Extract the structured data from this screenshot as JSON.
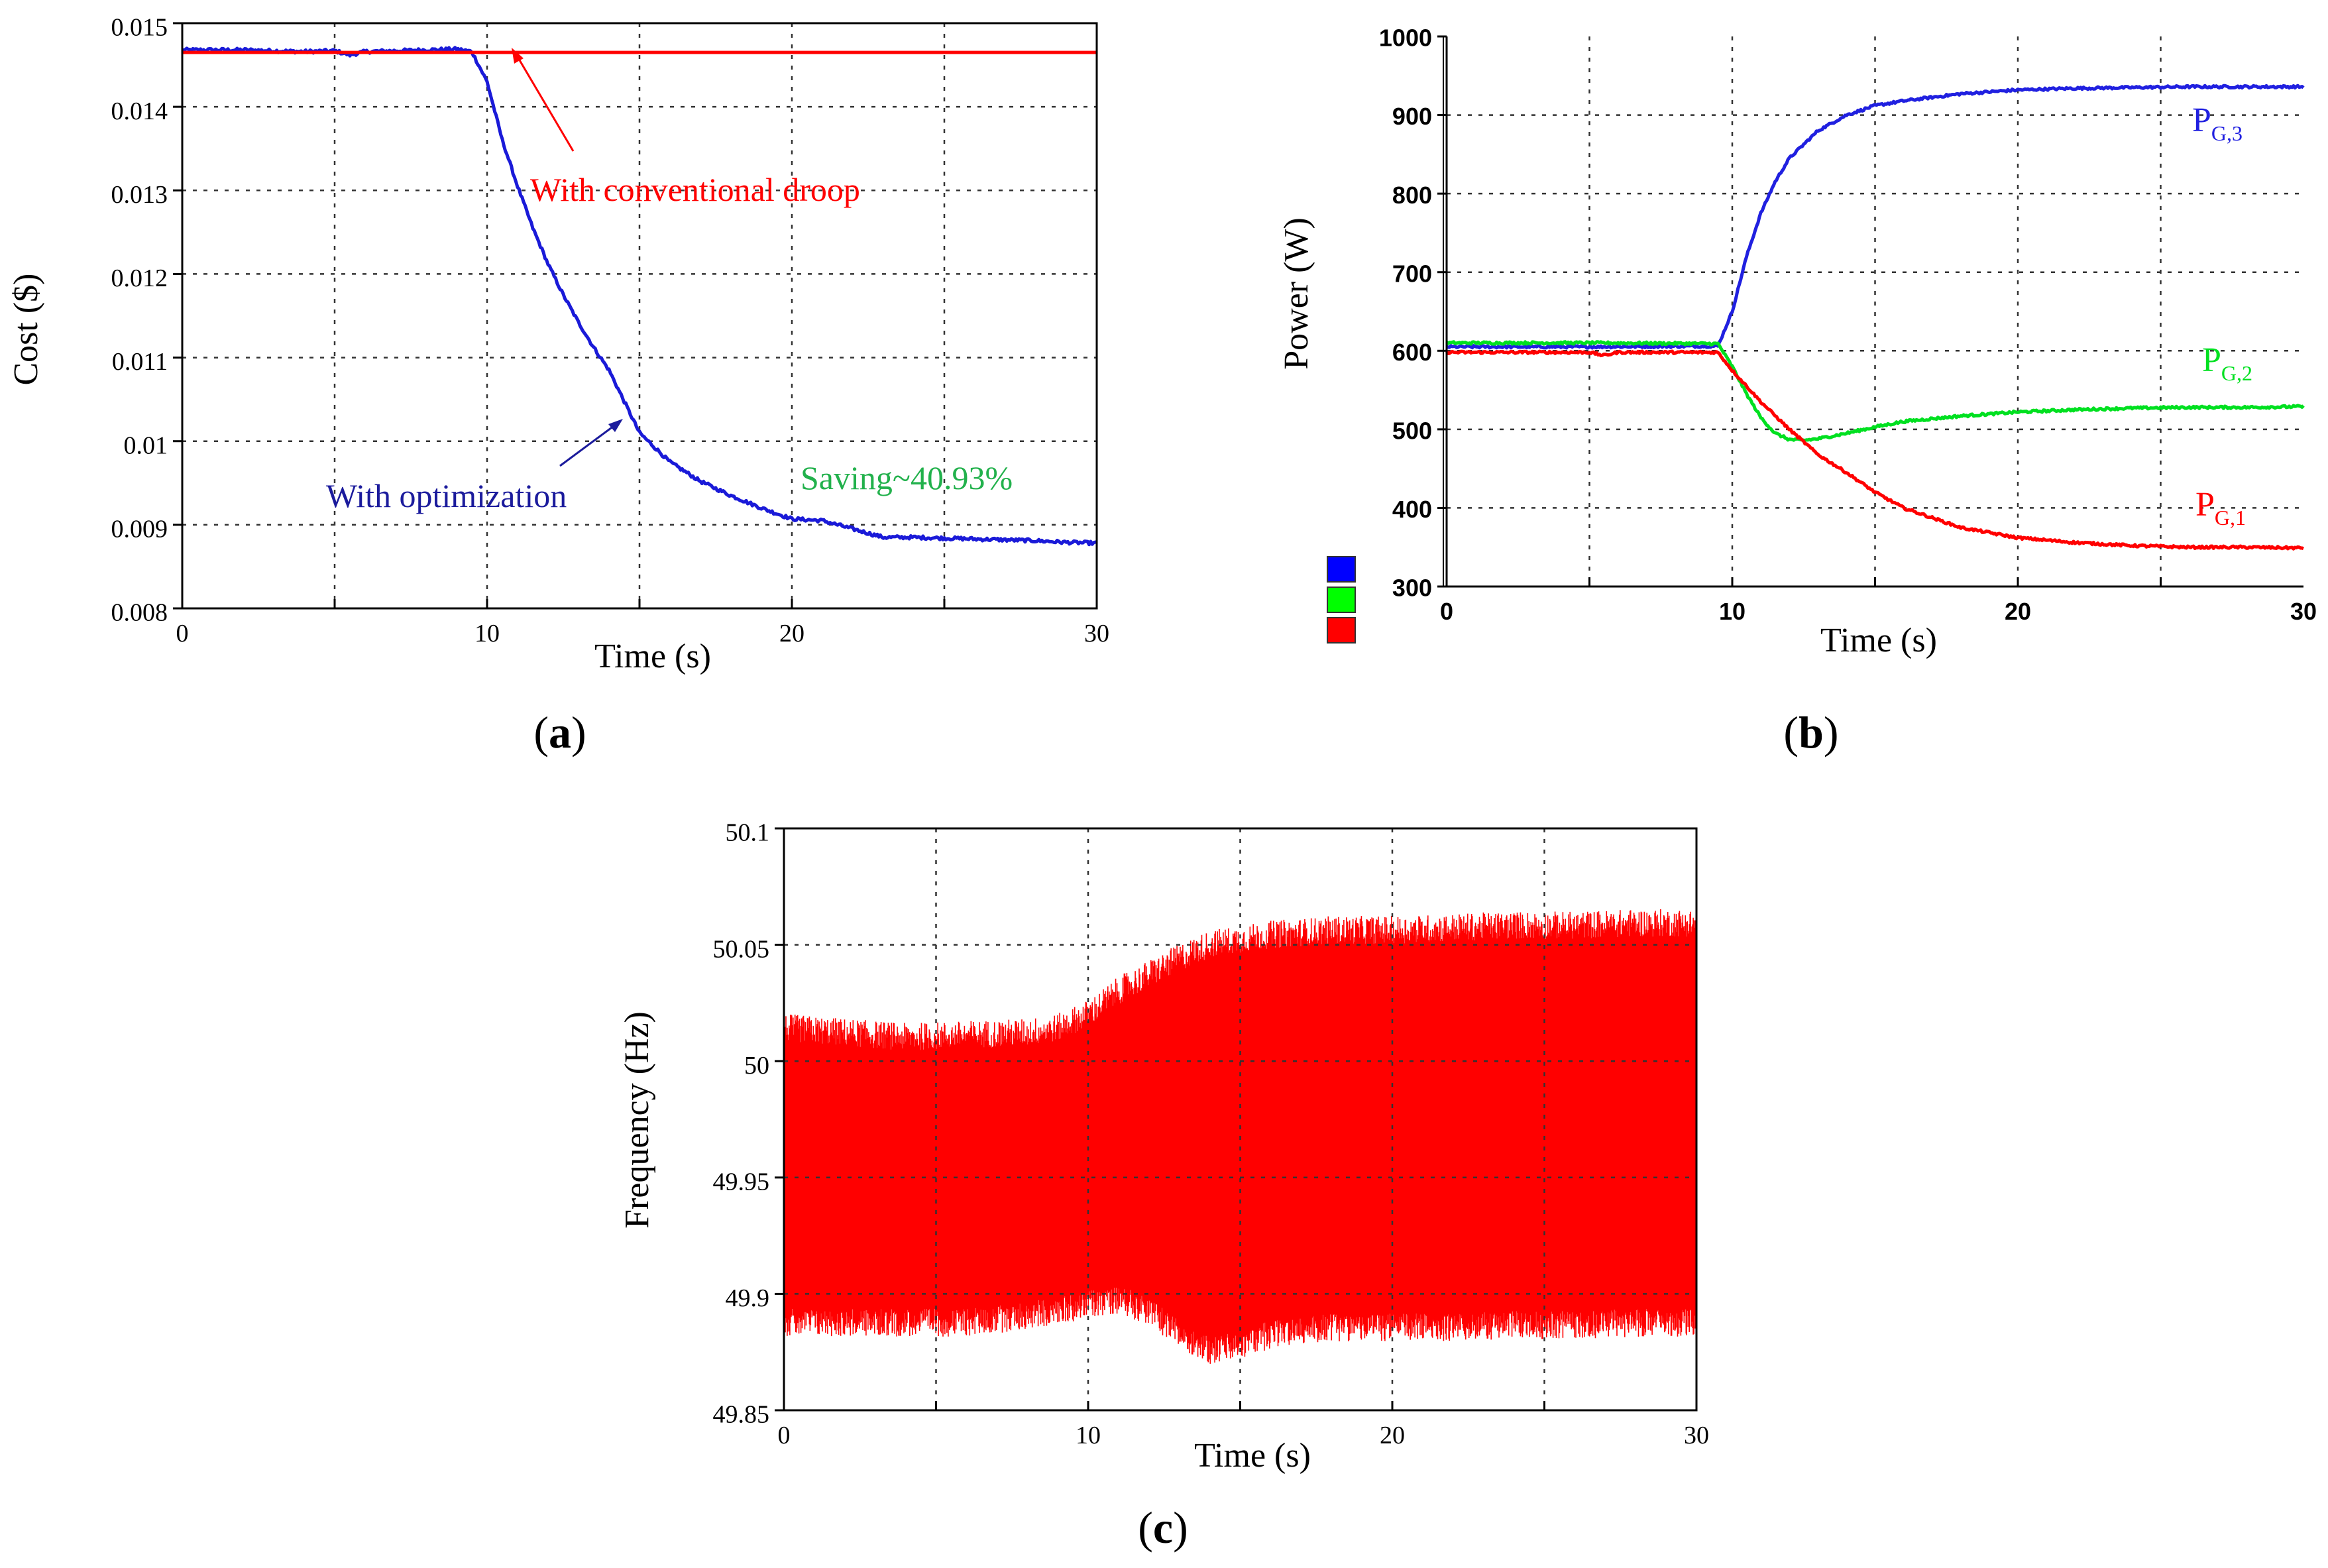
{
  "chart_data": [
    {
      "id": "a",
      "type": "line",
      "panel_label": "(a)",
      "title": "",
      "xlabel": "Time (s)",
      "ylabel": "Cost ($)",
      "xlim": [
        0,
        30
      ],
      "ylim": [
        0.008,
        0.015
      ],
      "x_ticks": [
        0,
        10,
        20,
        30
      ],
      "y_ticks": [
        0.008,
        0.009,
        0.01,
        0.011,
        0.012,
        0.013,
        0.014,
        0.015
      ],
      "y_tick_labels": [
        "0.008",
        "0.009",
        "0.01",
        "0.011",
        "0.012",
        "0.013",
        "0.014",
        "0.015"
      ],
      "grid": true,
      "series": [
        {
          "color": "#1a1ad8",
          "x": [
            0,
            2,
            4,
            5,
            5.5,
            6,
            7,
            8,
            9,
            9.5,
            10,
            10.5,
            11,
            11.5,
            12,
            12.5,
            13,
            13.5,
            14,
            15,
            16,
            17,
            18,
            19,
            20,
            21,
            22,
            23,
            24,
            25,
            26,
            27,
            28,
            29,
            30
          ],
          "y": [
            0.01468,
            0.01468,
            0.01466,
            0.01467,
            0.01462,
            0.01466,
            0.01467,
            0.01468,
            0.01469,
            0.01466,
            0.0143,
            0.0136,
            0.01305,
            0.01255,
            0.01212,
            0.01175,
            0.01142,
            0.01112,
            0.01085,
            0.0101,
            0.00975,
            0.00952,
            0.00935,
            0.0092,
            0.00907,
            0.00905,
            0.00895,
            0.00885,
            0.00885,
            0.00884,
            0.00883,
            0.00882,
            0.00881,
            0.00879,
            0.00878
          ]
        },
        {
          "color": "#ff0000",
          "x": [
            0,
            30
          ],
          "y": [
            0.01465,
            0.01465
          ]
        }
      ],
      "annotations": [
        {
          "text": "With conventional droop",
          "color": "#ff0000"
        },
        {
          "text": "With optimization",
          "color": "#1b1b9c"
        },
        {
          "text": "Saving~40.93%",
          "color": "#22b14c"
        }
      ]
    },
    {
      "id": "b",
      "type": "line",
      "panel_label": "(b)",
      "title": "",
      "xlabel": "Time (s)",
      "ylabel": "Power (W)",
      "xlim": [
        0,
        30
      ],
      "ylim": [
        300,
        1000
      ],
      "x_ticks": [
        0,
        10,
        20,
        30
      ],
      "y_ticks": [
        300,
        400,
        500,
        600,
        700,
        800,
        900,
        1000
      ],
      "grid": true,
      "legend_swatches": [
        "#0000ff",
        "#00ff00",
        "#ff0000"
      ],
      "series": [
        {
          "name": "P_G,3",
          "name_main": "P",
          "name_sub": "G,3",
          "color": "#2020e0",
          "x": [
            0,
            5,
            9.5,
            10,
            10.5,
            11,
            11.5,
            12,
            13,
            14,
            15,
            16,
            18,
            20,
            22,
            24,
            26,
            28,
            30
          ],
          "y": [
            605,
            605,
            606,
            650,
            720,
            775,
            815,
            845,
            880,
            900,
            912,
            918,
            927,
            932,
            934,
            935,
            936,
            936,
            936
          ]
        },
        {
          "name": "P_G,2",
          "name_main": "P",
          "name_sub": "G,2",
          "color": "#00e020",
          "x": [
            0,
            5,
            9.5,
            10,
            10.5,
            11,
            11.5,
            12,
            12.5,
            13,
            14,
            15,
            16,
            18,
            20,
            22,
            24,
            26,
            28,
            30
          ],
          "y": [
            610,
            610,
            609,
            580,
            545,
            515,
            495,
            487,
            486,
            488,
            495,
            503,
            510,
            517,
            522,
            525,
            527,
            528,
            528,
            529
          ]
        },
        {
          "name": "P_G,1",
          "name_main": "P",
          "name_sub": "G,1",
          "color": "#ff0000",
          "x": [
            0,
            5,
            5.5,
            6,
            9.5,
            10,
            11,
            12,
            13,
            14,
            15,
            16,
            18,
            20,
            22,
            24,
            26,
            28,
            30
          ],
          "y": [
            598,
            598,
            594,
            598,
            598,
            575,
            535,
            500,
            468,
            445,
            420,
            400,
            375,
            362,
            356,
            352,
            350,
            350,
            349
          ]
        }
      ]
    },
    {
      "id": "c",
      "type": "area",
      "panel_label": "(c)",
      "title": "",
      "xlabel": "Time (s)",
      "ylabel": "Frequency (Hz)",
      "xlim": [
        0,
        30
      ],
      "ylim": [
        49.85,
        50.1
      ],
      "x_ticks": [
        0,
        10,
        20,
        30
      ],
      "y_ticks": [
        49.85,
        49.9,
        49.95,
        50,
        50.05,
        50.1
      ],
      "y_tick_labels": [
        "49.85",
        "49.9",
        "49.95",
        "50",
        "50.05",
        "50.1"
      ],
      "grid": true,
      "series": [
        {
          "color": "#ff0000",
          "x": [
            0,
            2,
            4,
            6,
            8,
            9,
            10,
            11,
            12,
            13,
            14,
            15,
            16,
            18,
            20,
            22,
            24,
            26,
            28,
            30
          ],
          "upper": [
            50.012,
            50.01,
            50.008,
            50.009,
            50.01,
            50.012,
            50.018,
            50.028,
            50.035,
            50.042,
            50.048,
            50.05,
            50.052,
            50.054,
            50.054,
            50.055,
            50.056,
            50.056,
            50.057,
            50.057
          ],
          "lower": [
            49.89,
            49.89,
            49.89,
            49.89,
            49.893,
            49.895,
            49.898,
            49.9,
            49.895,
            49.885,
            49.878,
            49.88,
            49.885,
            49.888,
            49.888,
            49.888,
            49.889,
            49.889,
            49.89,
            49.89
          ]
        }
      ]
    }
  ]
}
